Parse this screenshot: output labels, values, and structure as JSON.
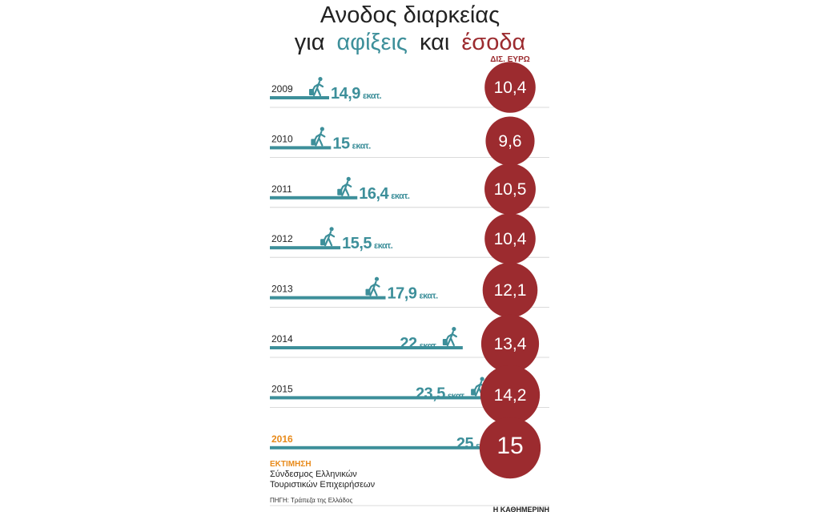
{
  "header": {
    "title_line1": "Ανοδος διαρκείας",
    "title_line2_prefix": "για",
    "title_line2_arrivals": "αφίξεις",
    "title_line2_and": "και",
    "title_line2_revenue": "έσοδα"
  },
  "revenue_unit": "ΔΙΣ. ΕΥΡΩ",
  "arrivals_unit": "εκατ.",
  "estimate_note": {
    "label": "ΕΚΤΙΜΗΣΗ",
    "line1": "Σύνδεσμος Ελληνικών",
    "line2": "Τουριστικών Επιχειρήσεων"
  },
  "source": "ΠΗΓΗ: Τράπεζα της Ελλάδος",
  "brand": "Η ΚΑΘΗΜΕΡΙΝΗ",
  "colors": {
    "arrivals": "#3d8f9a",
    "revenue": "#9c2b2f",
    "estimate": "#e88a1a",
    "separator": "#cfcfcf"
  },
  "chart_data": {
    "type": "bar",
    "categories": [
      "2009",
      "2010",
      "2011",
      "2012",
      "2013",
      "2014",
      "2015",
      "2016"
    ],
    "series": [
      {
        "key": "arrivals",
        "values": [
          14.9,
          15,
          16.4,
          15.5,
          17.9,
          22,
          23.5,
          25
        ],
        "labels": [
          "14,9",
          "15",
          "16,4",
          "15,5",
          "17,9",
          "22",
          "23,5",
          "25"
        ]
      },
      {
        "key": "revenue",
        "values": [
          10.4,
          9.6,
          10.5,
          10.4,
          12.1,
          13.4,
          14.2,
          15
        ],
        "labels": [
          "10,4",
          "9,6",
          "10,5",
          "10,4",
          "12,1",
          "13,4",
          "14,2",
          "15"
        ]
      }
    ],
    "estimate_index": 7,
    "title": "Ανοδος διαρκείας για αφίξεις και έσοδα",
    "xlabel": "",
    "ylabel": ""
  }
}
